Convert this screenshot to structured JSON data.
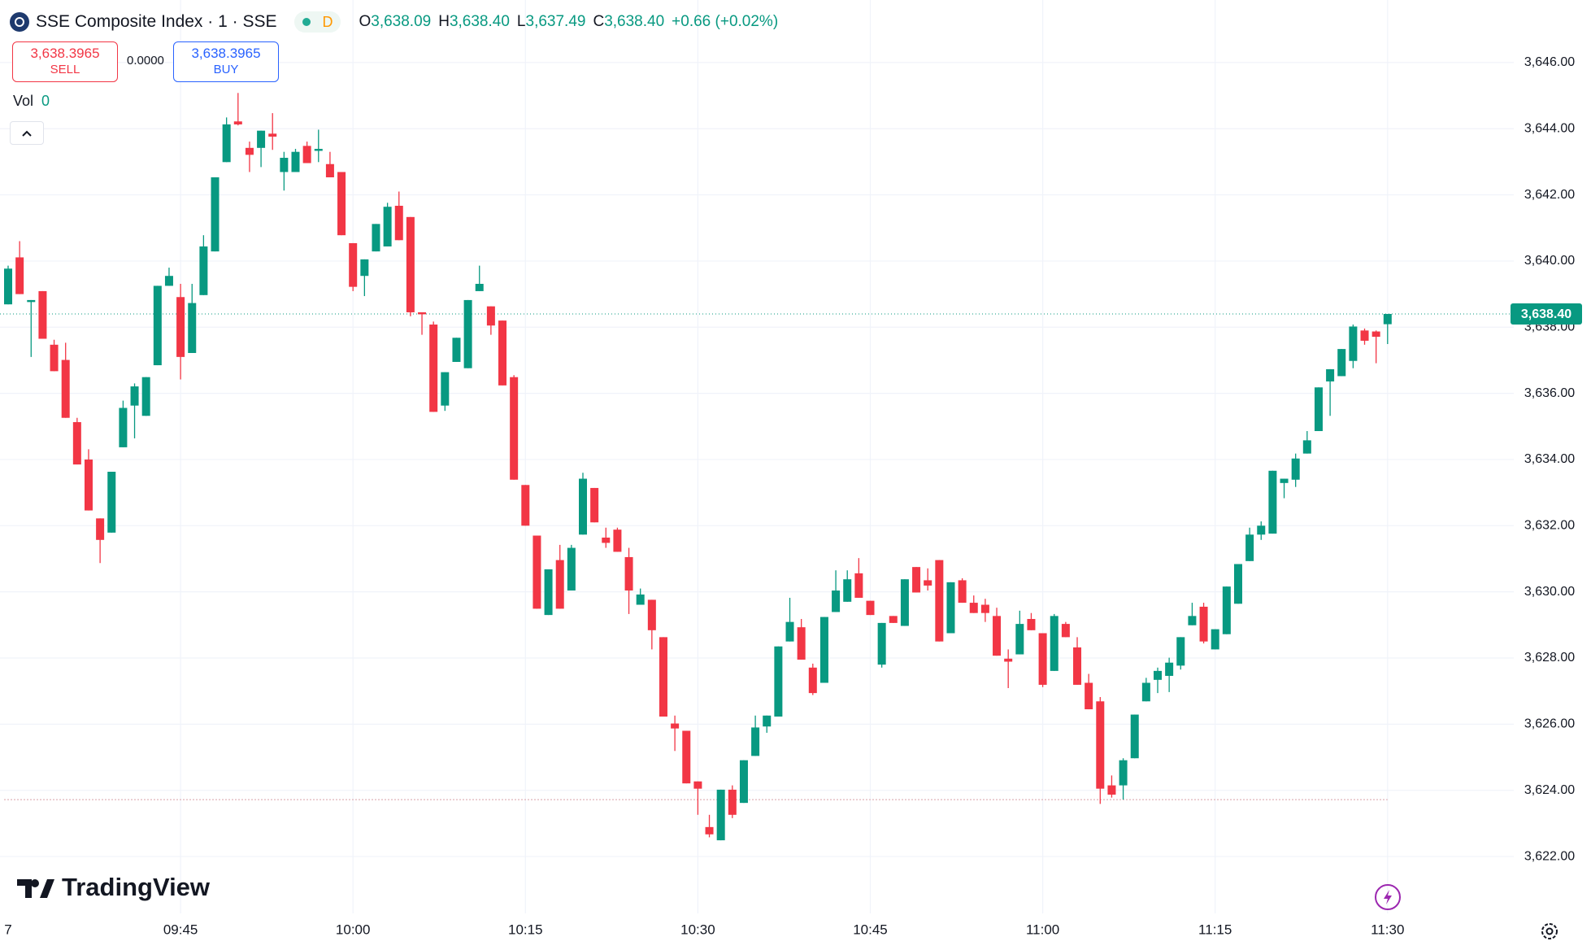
{
  "header": {
    "title": "SSE Composite Index · 1 · SSE",
    "interval": "D",
    "ohlc": [
      {
        "key": "O",
        "value": "3,638.09"
      },
      {
        "key": "H",
        "value": "3,638.40"
      },
      {
        "key": "L",
        "value": "3,637.49"
      },
      {
        "key": "C",
        "value": "3,638.40"
      }
    ],
    "change": "+0.66 (+0.02%)"
  },
  "trade": {
    "sell_price": "3,638.3965",
    "sell": "SELL",
    "spread": "0.0000",
    "buy_price": "3,638.3965",
    "buy": "BUY"
  },
  "volume": {
    "label": "Vol",
    "value": "0"
  },
  "watermark": "TradingView",
  "chart_data": {
    "type": "candlestick",
    "up_color": "#089981",
    "down_color": "#f23645",
    "grid": true,
    "categories": [
      "7",
      null,
      null,
      null,
      null,
      null,
      null,
      null,
      null,
      null,
      null,
      null,
      null,
      null,
      null,
      "09:45",
      null,
      null,
      null,
      null,
      null,
      null,
      null,
      null,
      null,
      null,
      null,
      null,
      null,
      null,
      "10:00",
      null,
      null,
      null,
      null,
      null,
      null,
      null,
      null,
      null,
      null,
      null,
      null,
      null,
      null,
      "10:15",
      null,
      null,
      null,
      null,
      null,
      null,
      null,
      null,
      null,
      null,
      null,
      null,
      null,
      null,
      "10:30",
      null,
      null,
      null,
      null,
      null,
      null,
      null,
      null,
      null,
      null,
      null,
      null,
      null,
      null,
      "10:45",
      null,
      null,
      null,
      null,
      null,
      null,
      null,
      null,
      null,
      null,
      null,
      null,
      null,
      null,
      "11:00",
      null,
      null,
      null,
      null,
      null,
      null,
      null,
      null,
      null,
      null,
      null,
      null,
      null,
      null,
      "11:15",
      null,
      null,
      null,
      null,
      null,
      null,
      null,
      null,
      null,
      null,
      null,
      null,
      null,
      null,
      "11:30"
    ],
    "open": [
      3638.69,
      3640.11,
      3638.76,
      3639.09,
      3637.47,
      3637.01,
      3635.13,
      3634.0,
      3632.22,
      3631.79,
      3634.37,
      3635.63,
      3635.32,
      3636.85,
      3639.25,
      3638.91,
      3637.22,
      3638.97,
      3640.29,
      3642.99,
      3644.22,
      3643.42,
      3643.42,
      3643.85,
      3642.69,
      3642.69,
      3643.48,
      3643.33,
      3642.93,
      3642.69,
      3640.54,
      3639.55,
      3640.29,
      3640.44,
      3641.67,
      3641.33,
      3638.45,
      3638.08,
      3635.63,
      3636.95,
      3636.76,
      3639.09,
      3638.63,
      3638.2,
      3636.49,
      3633.23,
      3631.7,
      3629.3,
      3630.96,
      3630.04,
      3631.73,
      3633.14,
      3631.64,
      3631.88,
      3631.05,
      3629.61,
      3629.76,
      3628.63,
      3626.02,
      3625.8,
      3624.27,
      3622.89,
      3622.49,
      3624.02,
      3623.62,
      3625.04,
      3625.93,
      3626.23,
      3628.5,
      3628.93,
      3627.71,
      3627.25,
      3629.39,
      3629.7,
      3630.56,
      3629.73,
      3627.8,
      3629.27,
      3628.97,
      3630.75,
      3630.35,
      3630.96,
      3628.75,
      3630.35,
      3629.67,
      3629.61,
      3629.27,
      3627.98,
      3628.11,
      3629.18,
      3628.75,
      3627.61,
      3629.03,
      3628.32,
      3627.25,
      3626.69,
      3624.15,
      3624.15,
      3624.97,
      3626.69,
      3627.34,
      3627.46,
      3627.77,
      3628.99,
      3629.55,
      3628.26,
      3628.72,
      3629.64,
      3630.93,
      3631.73,
      3631.76,
      3633.29,
      3633.39,
      3634.18,
      3634.86,
      3636.36,
      3636.52,
      3636.98,
      3637.9,
      3637.87,
      3638.09
    ],
    "high": [
      3639.86,
      3640.6,
      3638.82,
      3639.09,
      3637.62,
      3637.53,
      3635.26,
      3634.31,
      3632.22,
      3633.63,
      3635.78,
      3636.3,
      3636.49,
      3639.25,
      3639.8,
      3639.31,
      3639.31,
      3640.78,
      3642.53,
      3644.34,
      3645.08,
      3643.61,
      3643.94,
      3644.47,
      3643.3,
      3643.39,
      3643.61,
      3643.97,
      3643.3,
      3642.69,
      3640.54,
      3640.05,
      3641.12,
      3641.76,
      3642.1,
      3641.33,
      3638.45,
      3638.17,
      3636.64,
      3637.68,
      3638.82,
      3639.86,
      3638.63,
      3638.2,
      3636.55,
      3633.23,
      3631.7,
      3630.68,
      3631.42,
      3631.42,
      3633.6,
      3633.14,
      3631.94,
      3631.94,
      3631.33,
      3630.1,
      3629.76,
      3628.63,
      3626.26,
      3625.8,
      3624.27,
      3623.26,
      3624.02,
      3624.15,
      3624.91,
      3626.26,
      3626.26,
      3628.35,
      3629.82,
      3629.18,
      3627.83,
      3629.24,
      3630.65,
      3630.65,
      3631.02,
      3629.73,
      3629.06,
      3629.27,
      3630.38,
      3630.75,
      3630.71,
      3630.96,
      3630.29,
      3630.41,
      3629.89,
      3629.79,
      3629.52,
      3628.26,
      3629.43,
      3629.36,
      3628.75,
      3629.33,
      3629.09,
      3628.63,
      3627.52,
      3626.82,
      3624.45,
      3624.97,
      3626.29,
      3627.4,
      3627.71,
      3628.01,
      3628.63,
      3629.67,
      3629.67,
      3628.87,
      3630.16,
      3630.84,
      3631.94,
      3632.13,
      3633.66,
      3633.42,
      3634.18,
      3634.86,
      3636.18,
      3636.73,
      3637.34,
      3638.08,
      3637.96,
      3637.9,
      3638.4
    ],
    "low": [
      3638.69,
      3639.0,
      3637.1,
      3637.65,
      3636.67,
      3635.26,
      3633.85,
      3632.46,
      3630.87,
      3631.79,
      3634.37,
      3634.64,
      3635.32,
      3636.85,
      3639.25,
      3636.42,
      3637.22,
      3638.97,
      3640.29,
      3642.99,
      3644.1,
      3642.69,
      3642.84,
      3643.36,
      3642.13,
      3642.69,
      3642.96,
      3642.99,
      3642.53,
      3640.78,
      3639.09,
      3638.94,
      3640.29,
      3640.44,
      3640.63,
      3638.33,
      3637.77,
      3635.44,
      3635.47,
      3636.95,
      3636.76,
      3639.09,
      3637.77,
      3636.24,
      3633.39,
      3632.0,
      3629.49,
      3629.3,
      3629.49,
      3630.04,
      3631.73,
      3632.1,
      3631.33,
      3631.21,
      3629.33,
      3629.61,
      3628.26,
      3626.23,
      3625.19,
      3624.21,
      3623.26,
      3622.58,
      3622.49,
      3623.16,
      3623.62,
      3625.04,
      3625.74,
      3626.23,
      3628.5,
      3627.95,
      3626.88,
      3627.25,
      3629.39,
      3629.7,
      3629.82,
      3629.3,
      3627.71,
      3629.06,
      3628.97,
      3629.98,
      3630.04,
      3628.5,
      3628.75,
      3629.67,
      3629.36,
      3629.09,
      3628.07,
      3627.09,
      3628.11,
      3628.84,
      3627.12,
      3627.61,
      3628.63,
      3627.19,
      3626.45,
      3623.59,
      3623.78,
      3623.72,
      3624.97,
      3626.69,
      3626.94,
      3626.97,
      3627.65,
      3628.99,
      3628.44,
      3628.26,
      3628.72,
      3629.64,
      3630.93,
      3631.57,
      3631.76,
      3632.83,
      3633.17,
      3634.18,
      3634.86,
      3635.32,
      3636.52,
      3636.76,
      3637.47,
      3636.91,
      3637.49
    ],
    "close": [
      3639.77,
      3639.0,
      3638.82,
      3637.65,
      3636.67,
      3635.26,
      3633.85,
      3632.46,
      3631.57,
      3633.63,
      3635.56,
      3636.21,
      3636.49,
      3639.25,
      3639.55,
      3637.1,
      3638.73,
      3640.44,
      3642.53,
      3644.13,
      3644.13,
      3643.21,
      3643.94,
      3643.76,
      3643.12,
      3643.3,
      3642.96,
      3643.39,
      3642.53,
      3640.78,
      3639.22,
      3640.05,
      3641.12,
      3641.64,
      3640.63,
      3638.45,
      3638.39,
      3635.44,
      3636.64,
      3637.68,
      3638.82,
      3639.31,
      3638.05,
      3636.24,
      3633.39,
      3632.0,
      3629.49,
      3630.68,
      3629.49,
      3631.33,
      3633.42,
      3632.1,
      3631.48,
      3631.21,
      3630.04,
      3629.92,
      3628.84,
      3626.23,
      3625.87,
      3624.21,
      3624.05,
      3622.67,
      3624.02,
      3623.26,
      3624.91,
      3625.9,
      3626.26,
      3628.35,
      3629.09,
      3627.95,
      3626.94,
      3629.24,
      3630.04,
      3630.38,
      3629.82,
      3629.3,
      3629.06,
      3629.06,
      3630.38,
      3629.98,
      3630.19,
      3628.5,
      3630.29,
      3629.67,
      3629.36,
      3629.36,
      3628.07,
      3627.89,
      3629.03,
      3628.84,
      3627.19,
      3629.27,
      3628.63,
      3627.19,
      3626.45,
      3624.05,
      3623.87,
      3624.91,
      3626.29,
      3627.25,
      3627.61,
      3627.86,
      3628.63,
      3629.27,
      3628.5,
      3628.87,
      3630.16,
      3630.84,
      3631.73,
      3632.0,
      3633.66,
      3633.42,
      3634.03,
      3634.58,
      3636.18,
      3636.73,
      3637.34,
      3638.02,
      3637.59,
      3637.71,
      3638.4
    ],
    "ylim": [
      3620.28,
      3647.89
    ],
    "yticks": [
      {
        "value": 3622,
        "label": "3,622.00"
      },
      {
        "value": 3624,
        "label": "3,624.00"
      },
      {
        "value": 3626,
        "label": "3,626.00"
      },
      {
        "value": 3628,
        "label": "3,628.00"
      },
      {
        "value": 3630,
        "label": "3,630.00"
      },
      {
        "value": 3632,
        "label": "3,632.00"
      },
      {
        "value": 3634,
        "label": "3,634.00"
      },
      {
        "value": 3636,
        "label": "3,636.00"
      },
      {
        "value": 3638,
        "label": "3,638.00"
      },
      {
        "value": 3640,
        "label": "3,640.00"
      },
      {
        "value": 3642,
        "label": "3,642.00"
      },
      {
        "value": 3644,
        "label": "3,644.00"
      },
      {
        "value": 3646,
        "label": "3,646.00"
      }
    ],
    "price_line": {
      "value": 3638.4,
      "label": "3,638.40"
    },
    "low_line": 3623.72
  }
}
